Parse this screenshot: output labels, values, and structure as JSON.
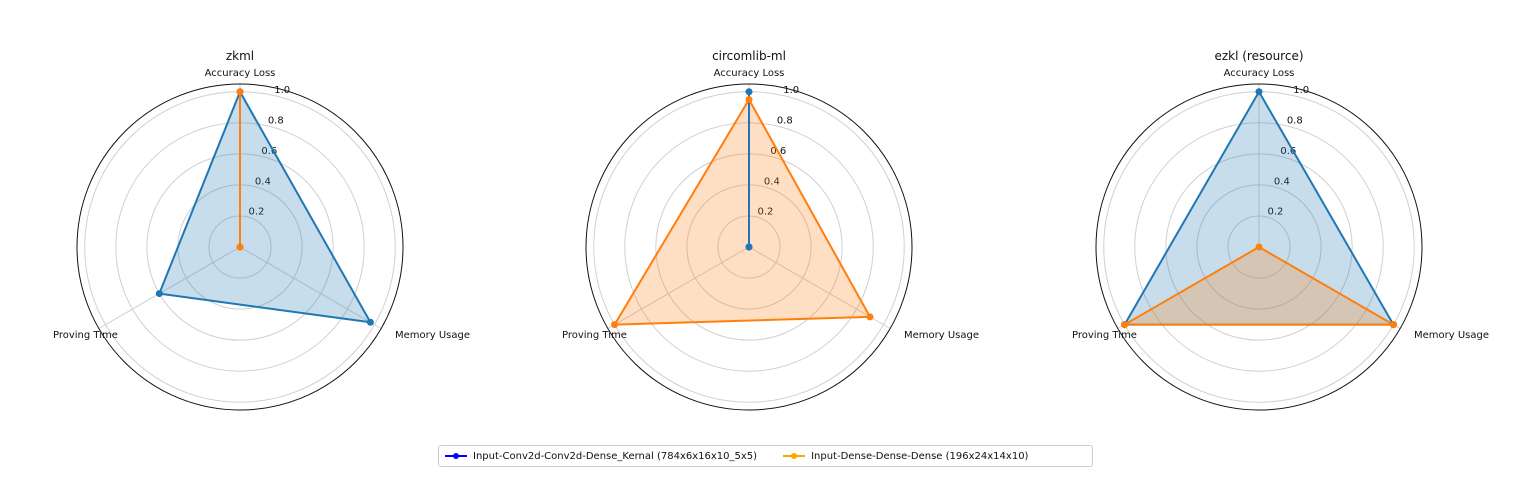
{
  "chart_data": [
    {
      "type": "radar",
      "title": "zkml",
      "axes": [
        "Accuracy Loss",
        "Memory Usage",
        "Proving Time"
      ],
      "radial_ticks": [
        "0.2",
        "0.4",
        "0.6",
        "0.8",
        "1.0"
      ],
      "rlim": [
        0,
        1.05
      ],
      "grid": true,
      "series": [
        {
          "name": "Input-Conv2d-Conv2d-Dense_Kernal (784x6x16x10_5x5)",
          "values": [
            1.0,
            0.97,
            0.6
          ],
          "color": "#1f77b4",
          "fill": true
        },
        {
          "name": "Input-Dense-Dense-Dense (196x24x14x10)",
          "values": [
            1.0,
            0.0,
            0.0
          ],
          "color": "#ff7f0e",
          "fill": false
        }
      ]
    },
    {
      "type": "radar",
      "title": "circomlib-ml",
      "axes": [
        "Accuracy Loss",
        "Memory Usage",
        "Proving Time"
      ],
      "radial_ticks": [
        "0.2",
        "0.4",
        "0.6",
        "0.8",
        "1.0"
      ],
      "rlim": [
        0,
        1.05
      ],
      "grid": true,
      "series": [
        {
          "name": "Input-Conv2d-Conv2d-Dense_Kernal (784x6x16x10_5x5)",
          "values": [
            1.0,
            0.0,
            0.0
          ],
          "color": "#1f77b4",
          "fill": false
        },
        {
          "name": "Input-Dense-Dense-Dense (196x24x14x10)",
          "values": [
            0.95,
            0.9,
            1.0
          ],
          "color": "#ff7f0e",
          "fill": true
        }
      ]
    },
    {
      "type": "radar",
      "title": "ezkl (resource)",
      "axes": [
        "Accuracy Loss",
        "Memory Usage",
        "Proving Time"
      ],
      "radial_ticks": [
        "0.2",
        "0.4",
        "0.6",
        "0.8",
        "1.0"
      ],
      "rlim": [
        0,
        1.05
      ],
      "grid": true,
      "series": [
        {
          "name": "Input-Conv2d-Conv2d-Dense_Kernal (784x6x16x10_5x5)",
          "values": [
            1.0,
            1.0,
            1.0
          ],
          "color": "#1f77b4",
          "fill": true
        },
        {
          "name": "Input-Dense-Dense-Dense (196x24x14x10)",
          "values": [
            0.0,
            1.0,
            1.0
          ],
          "color": "#ff7f0e",
          "fill": true
        }
      ]
    }
  ],
  "legend": {
    "placement": "bottom-center",
    "entries": [
      {
        "label": "Input-Conv2d-Conv2d-Dense_Kernal (784x6x16x10_5x5)",
        "color": "#0000ff"
      },
      {
        "label": "Input-Dense-Dense-Dense (196x24x14x10)",
        "color": "#ffa500"
      }
    ]
  }
}
